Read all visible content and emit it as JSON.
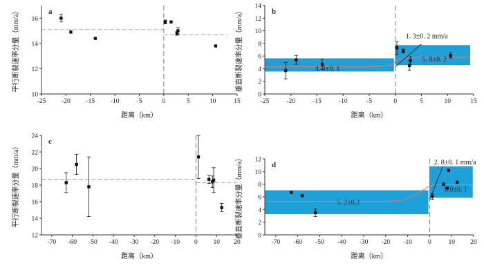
{
  "colors": {
    "band": "#1ea0d8",
    "band_edge": "#1590c8",
    "median": "#e07a6e",
    "dashed": "#b0b0b0",
    "axis": "#333333",
    "marker": "#111111"
  },
  "chart_data": [
    {
      "id": "a",
      "type": "scatter",
      "panel_label": "a",
      "xlabel": "距离（km）",
      "ylabel": "平行断裂速率分量（mm/a）",
      "xlim": [
        -25,
        15
      ],
      "ylim": [
        10,
        17
      ],
      "xticks": [
        -25,
        -20,
        -15,
        -10,
        -5,
        0,
        5,
        10,
        15
      ],
      "yticks": [
        10,
        12,
        14,
        16
      ],
      "points": [
        {
          "x": -21,
          "y": 16.0,
          "err": 0.3
        },
        {
          "x": -19,
          "y": 14.9,
          "err": null
        },
        {
          "x": -14,
          "y": 14.4,
          "err": null
        },
        {
          "x": 0.3,
          "y": 15.7,
          "err": 0.15
        },
        {
          "x": 1.5,
          "y": 15.7,
          "err": null
        },
        {
          "x": 2.7,
          "y": 14.8,
          "err": 0.15
        },
        {
          "x": 2.9,
          "y": 15.0,
          "err": 0.25
        },
        {
          "x": 10.6,
          "y": 13.8,
          "err": null
        }
      ],
      "reference_lines": [
        {
          "x_from": -25,
          "x_to": 0,
          "y": 15.1
        },
        {
          "x_from": 0,
          "x_to": 13,
          "y": 14.7
        }
      ],
      "divider_x": 0
    },
    {
      "id": "b",
      "type": "scatter",
      "panel_label": "b",
      "xlabel": "距离（km）",
      "ylabel": "垂直断裂速率分量（mm/a）",
      "xlim": [
        -25,
        15
      ],
      "ylim": [
        0,
        14
      ],
      "xticks": [
        -25,
        -20,
        -15,
        -10,
        -5,
        0,
        5,
        10,
        15
      ],
      "yticks": [
        0,
        2,
        4,
        6,
        8,
        10,
        12,
        14
      ],
      "points": [
        {
          "x": -21,
          "y": 3.7,
          "err": 1.3
        },
        {
          "x": -19,
          "y": 5.4,
          "err": 0.7
        },
        {
          "x": -14,
          "y": 4.7,
          "err": 0.8
        },
        {
          "x": 0.3,
          "y": 7.3,
          "err": 1.0
        },
        {
          "x": 1.5,
          "y": 6.8,
          "err": 0.3
        },
        {
          "x": 2.7,
          "y": 4.5,
          "err": 0.8
        },
        {
          "x": 2.9,
          "y": 5.3,
          "err": 0.6
        },
        {
          "x": 10.6,
          "y": 6.1,
          "err": 0.4
        }
      ],
      "bands": [
        {
          "x_from": -25,
          "x_to": -0.3,
          "y_low": 3.6,
          "y_high": 5.6,
          "label": "4. 3±0. 1",
          "label_x": -13,
          "label_y": 4.0
        },
        {
          "x_from": 0,
          "x_to": 14.3,
          "y_low": 4.6,
          "y_high": 7.7,
          "label": "5. 8±0. 2",
          "label_x": 7.5,
          "label_y": 5.5
        }
      ],
      "median_curve": [
        [
          -25,
          4.3
        ],
        [
          -4,
          4.3
        ],
        [
          -1,
          4.5
        ],
        [
          0.5,
          5.4
        ],
        [
          2,
          5.8
        ],
        [
          14.3,
          5.8
        ]
      ],
      "slope_line": [
        [
          0,
          4.3
        ],
        [
          5,
          7.9
        ]
      ],
      "slope_label": {
        "text": "1. 3±0. 2 mm/a",
        "x": 2.0,
        "y": 9.2
      },
      "reference_lines": [],
      "divider_x": 0
    },
    {
      "id": "c",
      "type": "scatter",
      "panel_label": "c",
      "xlabel": "距离（km）",
      "ylabel": "平行断裂速率分量（mm/a）",
      "xlim": [
        -75,
        20
      ],
      "ylim": [
        12,
        24
      ],
      "xticks": [
        -70,
        -60,
        -50,
        -40,
        -30,
        -20,
        -10,
        0,
        10,
        20
      ],
      "yticks": [
        12,
        14,
        16,
        18,
        20,
        22,
        24
      ],
      "points": [
        {
          "x": -63,
          "y": 18.3,
          "err": 1.2
        },
        {
          "x": -58,
          "y": 20.5,
          "err": 1.2
        },
        {
          "x": -52,
          "y": 17.8,
          "err": 3.6
        },
        {
          "x": 1.2,
          "y": 21.4,
          "err": 2.6
        },
        {
          "x": 6.3,
          "y": 18.7,
          "err": 0.5
        },
        {
          "x": 8.0,
          "y": 18.4,
          "err": 0.7
        },
        {
          "x": 8.6,
          "y": 18.6,
          "err": 1.5
        },
        {
          "x": 12.5,
          "y": 15.3,
          "err": 0.5
        }
      ],
      "reference_lines": [
        {
          "x_from": -75,
          "x_to": 0,
          "y": 18.7
        },
        {
          "x_from": 0,
          "x_to": 20,
          "y": 18.3
        }
      ],
      "divider_x": 0
    },
    {
      "id": "d",
      "type": "scatter",
      "panel_label": "d",
      "xlabel": "距离（km）",
      "ylabel": "垂直断裂速率分量（mm/a）",
      "xlim": [
        -75,
        20
      ],
      "ylim": [
        0,
        12
      ],
      "xticks": [
        -70,
        -60,
        -50,
        -40,
        -30,
        -20,
        -10,
        0,
        10,
        20
      ],
      "yticks": [
        0,
        2,
        4,
        6,
        8,
        10,
        12
      ],
      "points": [
        {
          "x": -63,
          "y": 6.7,
          "err": null
        },
        {
          "x": -58,
          "y": 6.2,
          "err": null
        },
        {
          "x": -52,
          "y": 3.5,
          "err": 0.6
        },
        {
          "x": 1.2,
          "y": 6.1,
          "err": 0.5
        },
        {
          "x": 6.3,
          "y": 8.0,
          "err": null
        },
        {
          "x": 8.0,
          "y": 7.4,
          "err": null
        },
        {
          "x": 8.6,
          "y": 10.2,
          "err": null
        },
        {
          "x": 12.5,
          "y": 8.3,
          "err": null
        }
      ],
      "bands": [
        {
          "x_from": -75,
          "x_to": -0.7,
          "y_low": 3.3,
          "y_high": 7.0,
          "label": "5. 2±0.2",
          "label_x": -37,
          "label_y": 5.2
        },
        {
          "x_from": 0,
          "x_to": 19.5,
          "y_low": 5.9,
          "y_high": 10.8,
          "label": "8.0±0. 1",
          "label_x": 12,
          "label_y": 7.2
        }
      ],
      "median_curve": [
        [
          -75,
          5.3
        ],
        [
          -18,
          5.3
        ],
        [
          -12,
          5.5
        ],
        [
          -6,
          6.4
        ],
        [
          -1,
          7.5
        ],
        [
          2,
          7.9
        ],
        [
          19.5,
          7.9
        ]
      ],
      "slope_line": [
        [
          0,
          5.6
        ],
        [
          6,
          10.8
        ]
      ],
      "slope_label": {
        "text": "2. 8±0. 1 mm/a",
        "x": 2.0,
        "y": 11.5
      },
      "reference_lines": [],
      "divider_x": 0
    }
  ]
}
